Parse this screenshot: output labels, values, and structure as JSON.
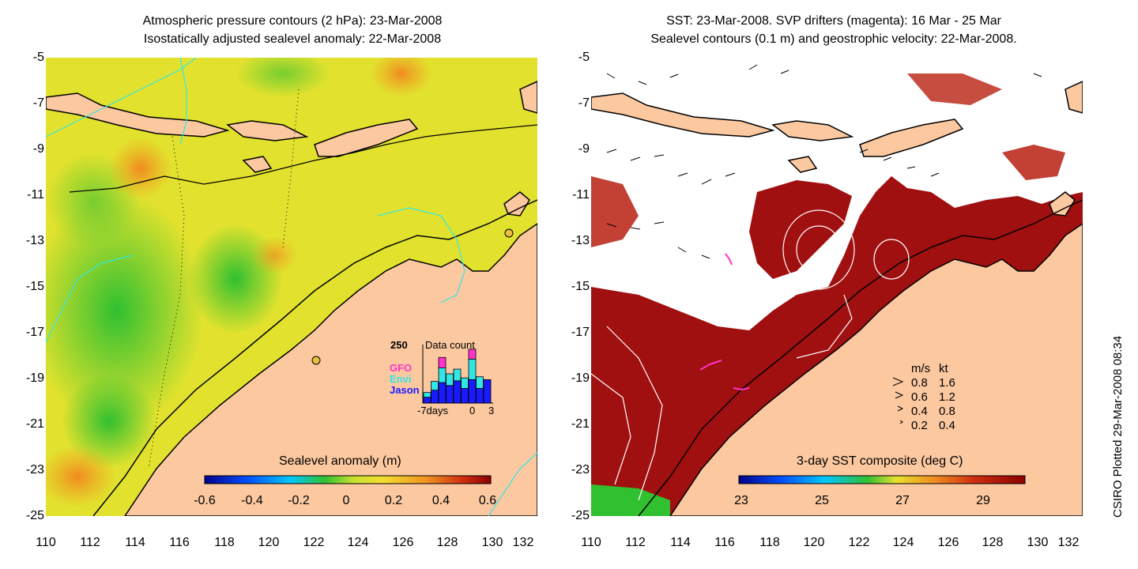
{
  "left_panel": {
    "title_line1": "Atmospheric pressure contours (2 hPa): 23-Mar-2008",
    "title_line2": "Isostatically adjusted sealevel anomaly: 22-Mar-2008",
    "y_ticks": [
      "-5",
      "-7",
      "-9",
      "-11",
      "-13",
      "-15",
      "-17",
      "-19",
      "-21",
      "-23",
      "-25"
    ],
    "x_ticks": [
      "110",
      "112",
      "114",
      "116",
      "118",
      "120",
      "122",
      "124",
      "126",
      "128",
      "130",
      "132"
    ],
    "colorbar_label": "Sealevel anomaly (m)",
    "colorbar_ticks": [
      "-0.6",
      "-0.4",
      "-0.2",
      "0",
      "0.2",
      "0.4",
      "0.6"
    ],
    "inset": {
      "ymax_label": "250",
      "title": "Data count",
      "legend": [
        {
          "name": "GFO",
          "color": "#ff33cc"
        },
        {
          "name": "Envi",
          "color": "#33e6e6"
        },
        {
          "name": "Jason",
          "color": "#1a1aff"
        }
      ],
      "x_labels": [
        "-7days",
        "0",
        "3"
      ],
      "bars": [
        {
          "jason": 0.1,
          "envi": 0.08,
          "gfo": 0.0
        },
        {
          "jason": 0.22,
          "envi": 0.15,
          "gfo": 0.0
        },
        {
          "jason": 0.35,
          "envi": 0.25,
          "gfo": 0.18
        },
        {
          "jason": 0.3,
          "envi": 0.2,
          "gfo": 0.0
        },
        {
          "jason": 0.38,
          "envi": 0.2,
          "gfo": 0.0
        },
        {
          "jason": 0.25,
          "envi": 0.18,
          "gfo": 0.0
        },
        {
          "jason": 0.4,
          "envi": 0.35,
          "gfo": 0.17
        },
        {
          "jason": 0.25,
          "envi": 0.2,
          "gfo": 0.0
        },
        {
          "jason": 0.4,
          "envi": 0.0,
          "gfo": 0.0
        }
      ]
    }
  },
  "right_panel": {
    "title_line1": "SST: 23-Mar-2008. SVP drifters (magenta): 16 Mar - 25 Mar",
    "title_line2": "Sealevel contours (0.1 m) and geostrophic velocity: 22-Mar-2008.",
    "y_ticks": [
      "-5",
      "-7",
      "-9",
      "-11",
      "-13",
      "-15",
      "-17",
      "-19",
      "-21",
      "-23",
      "-25"
    ],
    "x_ticks": [
      "110",
      "112",
      "114",
      "116",
      "118",
      "120",
      "122",
      "124",
      "126",
      "128",
      "130",
      "132"
    ],
    "colorbar_label": "3-day SST composite (deg C)",
    "colorbar_ticks": [
      "23",
      "25",
      "27",
      "29"
    ],
    "speed_legend": {
      "header_ms": "m/s",
      "header_kt": "kt",
      "rows": [
        {
          "ms": "0.8",
          "kt": "1.6"
        },
        {
          "ms": "0.6",
          "kt": "1.2"
        },
        {
          "ms": "0.4",
          "kt": "0.8"
        },
        {
          "ms": "0.2",
          "kt": "0.4"
        }
      ]
    }
  },
  "side_text": "CSIRO Plotted 29-Mar-2008 08:34",
  "colors": {
    "land": "#fbc8a0",
    "ocean_yellow": "#e8e830",
    "sst_dark_red": "#a01010",
    "contour_cyan": "#33e6e6"
  }
}
